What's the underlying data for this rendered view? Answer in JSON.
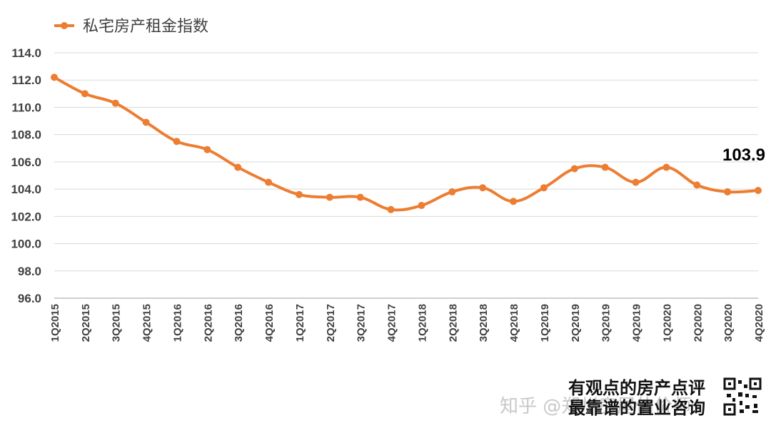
{
  "chart_data": {
    "type": "line",
    "title": "",
    "xlabel": "",
    "ylabel": "",
    "ylim": [
      96.0,
      114.0
    ],
    "yticks": [
      "96.0",
      "98.0",
      "100.0",
      "102.0",
      "104.0",
      "106.0",
      "108.0",
      "110.0",
      "112.0",
      "114.0"
    ],
    "grid": true,
    "legend_position": "top-left",
    "categories": [
      "1Q2015",
      "2Q2015",
      "3Q2015",
      "4Q2015",
      "1Q2016",
      "2Q2016",
      "3Q2016",
      "4Q2016",
      "1Q2017",
      "2Q2017",
      "3Q2017",
      "4Q2017",
      "1Q2018",
      "2Q2018",
      "3Q2018",
      "4Q2018",
      "1Q2019",
      "2Q2019",
      "3Q2019",
      "4Q2019",
      "1Q2020",
      "2Q2020",
      "3Q2020",
      "4Q2020"
    ],
    "series": [
      {
        "name": "私宅房产租金指数",
        "color": "#ED7D31",
        "values": [
          112.2,
          111.0,
          110.3,
          108.9,
          107.5,
          106.9,
          105.6,
          104.5,
          103.6,
          103.4,
          103.4,
          102.5,
          102.8,
          103.8,
          104.1,
          103.1,
          104.1,
          105.5,
          105.6,
          104.5,
          105.6,
          104.3,
          103.8,
          103.9
        ]
      }
    ],
    "annotations": [
      {
        "text": "103.9",
        "category": "4Q2020"
      }
    ]
  },
  "watermark": {
    "left": "知乎 @郑州房屋估价师",
    "right_line1": "有观点的房产点评",
    "right_line2": "最靠谱的置业咨询"
  },
  "qr_icon": "qr-code-icon"
}
